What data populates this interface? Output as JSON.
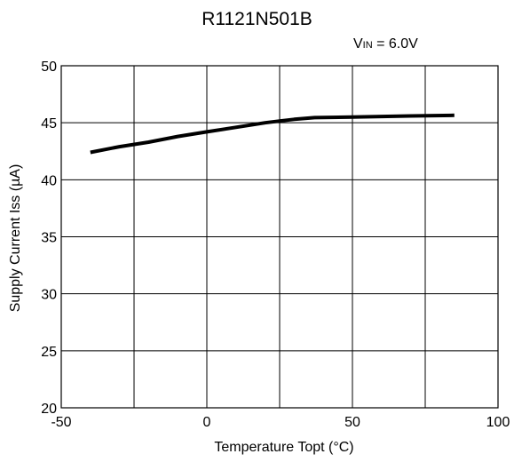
{
  "chart_data": {
    "type": "line",
    "title": "R1121N501B",
    "condition": {
      "symbol": "V",
      "subscript": "IN",
      "rest": " = 6.0V"
    },
    "xlabel": "Temperature Topt (°C)",
    "ylabel": "Supply Current Iss (µA)",
    "xlim": [
      -50,
      100
    ],
    "ylim": [
      20,
      50
    ],
    "xticks": [
      -50,
      0,
      50,
      100
    ],
    "yticks": [
      20,
      25,
      30,
      35,
      40,
      45,
      50
    ],
    "grid": true,
    "series": [
      {
        "x": [
          -40,
          -30,
          -20,
          -10,
          0,
          10,
          20,
          25,
          30,
          37,
          50,
          60,
          70,
          85
        ],
        "y": [
          42.4,
          42.9,
          43.3,
          43.8,
          44.2,
          44.6,
          45.0,
          45.15,
          45.3,
          45.45,
          45.5,
          45.55,
          45.6,
          45.65
        ],
        "color": "#000000"
      }
    ]
  }
}
